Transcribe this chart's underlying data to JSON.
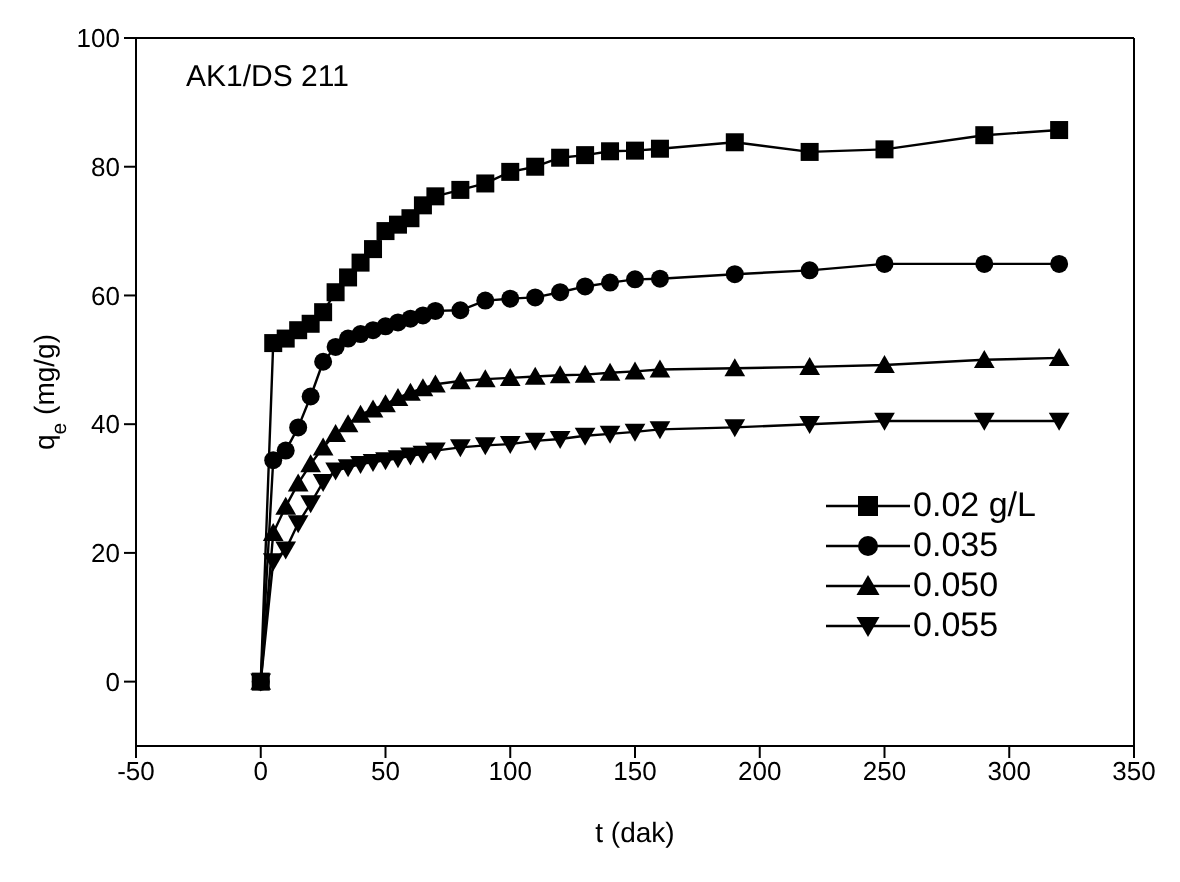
{
  "chart_data": {
    "type": "line",
    "xlabel": "t (dak)",
    "ylabel": "q$_{e}$ (mg/g)",
    "annotations": [
      "AK1/DS 211"
    ],
    "xlim": [
      -50,
      350
    ],
    "xticks": [
      -50,
      0,
      50,
      100,
      150,
      200,
      250,
      300,
      350
    ],
    "ylim": [
      -10,
      100
    ],
    "yticks": [
      0,
      20,
      40,
      60,
      80,
      100
    ],
    "legend": "bottom right",
    "line_style": "solid",
    "x": [
      0,
      5,
      10,
      15,
      20,
      25,
      30,
      35,
      40,
      45,
      50,
      55,
      60,
      65,
      70,
      80,
      90,
      100,
      110,
      120,
      130,
      140,
      150,
      160,
      190,
      220,
      250,
      290,
      320
    ],
    "series": [
      {
        "name": "0.02 g/L",
        "color": "#000000",
        "marker": "square",
        "values": [
          0,
          52.6,
          53.3,
          54.6,
          55.6,
          57.4,
          60.5,
          62.8,
          65.1,
          67.2,
          70,
          71,
          72,
          74,
          75.4,
          76.4,
          77.4,
          79.2,
          80,
          81.4,
          81.8,
          82.4,
          82.5,
          82.8,
          83.8,
          82.3,
          82.7,
          84.9,
          85.7
        ]
      },
      {
        "name": "0.035",
        "color": "#000000",
        "marker": "circle",
        "values": [
          0,
          34.4,
          35.9,
          39.5,
          44.3,
          49.7,
          52,
          53.3,
          54,
          54.6,
          55.2,
          55.8,
          56.4,
          56.9,
          57.6,
          57.7,
          59.2,
          59.5,
          59.7,
          60.5,
          61.4,
          62,
          62.5,
          62.6,
          63.3,
          63.9,
          64.9,
          64.9,
          64.9
        ]
      },
      {
        "name": "0.050",
        "color": "#000000",
        "marker": "triangle",
        "values": [
          0,
          23.1,
          27.2,
          30.8,
          33.8,
          36.4,
          38.5,
          40,
          41.5,
          42.3,
          43.1,
          44.1,
          44.9,
          45.6,
          46.2,
          46.7,
          47,
          47.2,
          47.4,
          47.6,
          47.7,
          48,
          48.2,
          48.5,
          48.7,
          48.9,
          49.2,
          50,
          50.3
        ]
      },
      {
        "name": "0.055",
        "color": "#000000",
        "marker": "triangle-down",
        "values": [
          0,
          18.7,
          20.5,
          24.6,
          27.7,
          31,
          32.8,
          33.3,
          33.8,
          34.1,
          34.4,
          34.7,
          35.1,
          35.4,
          35.9,
          36.4,
          36.7,
          36.9,
          37.4,
          37.7,
          38.2,
          38.5,
          38.8,
          39.2,
          39.5,
          40,
          40.5,
          40.5,
          40.5
        ]
      }
    ]
  }
}
